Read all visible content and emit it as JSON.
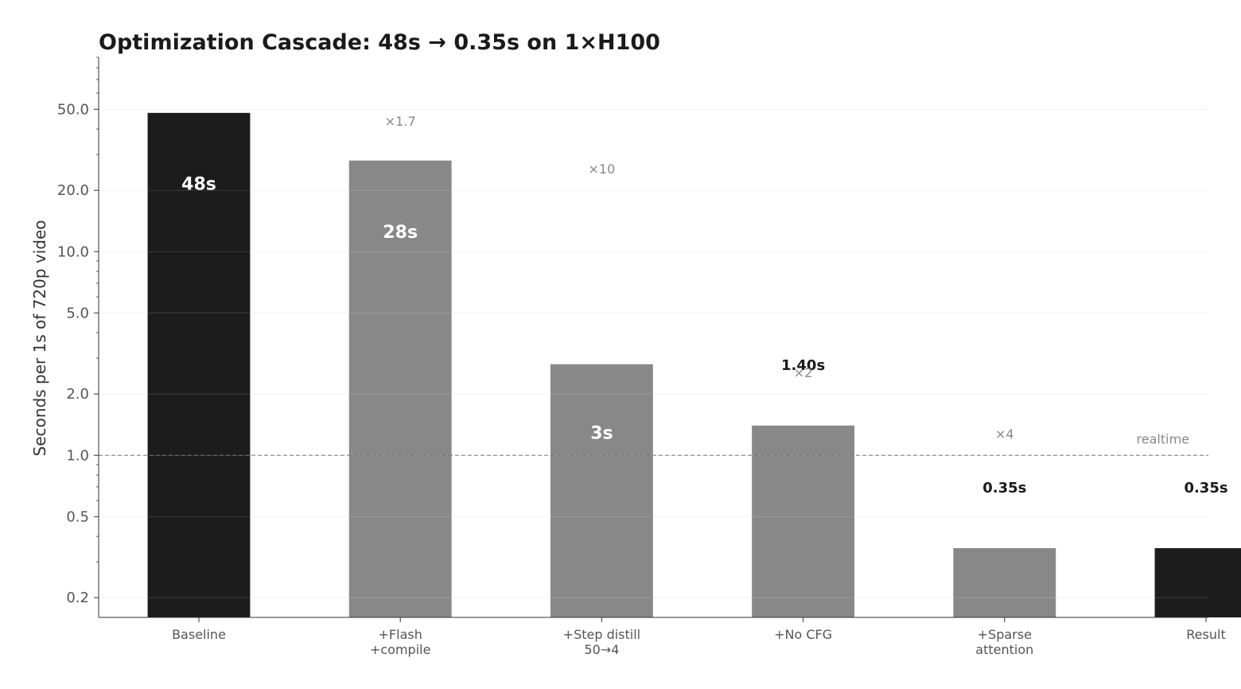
{
  "chart_data": {
    "type": "bar",
    "title": "Optimization Cascade: 48s → 0.35s on 1×H100",
    "xlabel": "",
    "ylabel": "Seconds per 1s of 720p video",
    "yscale": "log",
    "ylim": [
      0.16,
      90
    ],
    "yticks": [
      0.2,
      0.5,
      1.0,
      2.0,
      5.0,
      10.0,
      20.0,
      50.0
    ],
    "ytick_labels": [
      "0.2",
      "0.5",
      "1.0",
      "2.0",
      "5.0",
      "10.0",
      "20.0",
      "50.0"
    ],
    "grid": true,
    "categories": [
      [
        "Baseline"
      ],
      [
        "+Flash",
        "+compile"
      ],
      [
        "+Step distill",
        "50→4"
      ],
      [
        "+No CFG"
      ],
      [
        "+Sparse",
        "attention"
      ],
      [
        "Result"
      ]
    ],
    "values": [
      48,
      28,
      2.8,
      1.4,
      0.35,
      0.35
    ],
    "bar_labels": [
      "48s",
      "28s",
      "3s",
      "1.40s",
      "0.35s",
      "0.35s"
    ],
    "bar_label_inside": [
      true,
      true,
      true,
      false,
      false,
      false
    ],
    "speedup_labels": [
      "",
      "×1.7",
      "×10",
      "×2",
      "×4",
      ""
    ],
    "bar_colors": [
      "#1c1c1c",
      "#888888",
      "#888888",
      "#888888",
      "#888888",
      "#1c1c1c"
    ],
    "reference_line": {
      "value": 1.0,
      "label": "realtime",
      "style": "dashed"
    }
  }
}
